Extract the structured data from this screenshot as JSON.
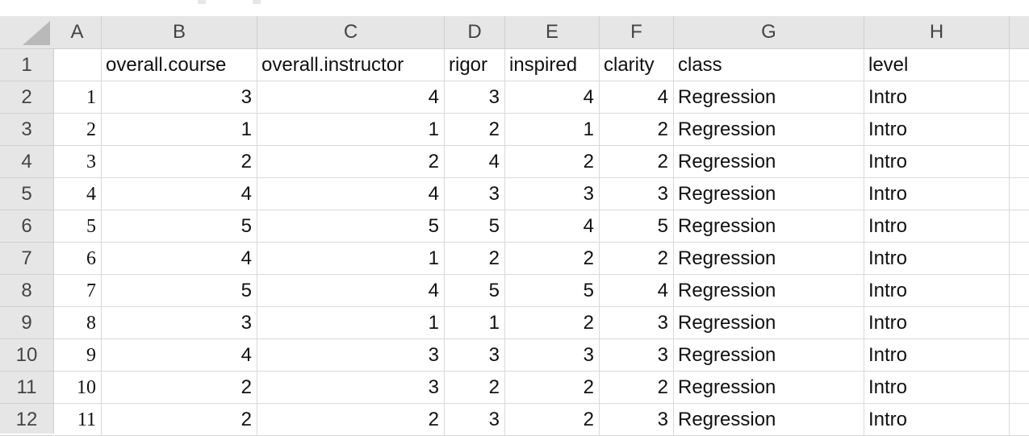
{
  "sheet": {
    "column_letters": [
      "A",
      "B",
      "C",
      "D",
      "E",
      "F",
      "G",
      "H"
    ],
    "row_numbers": [
      "1",
      "2",
      "3",
      "4",
      "5",
      "6",
      "7",
      "8",
      "9",
      "10",
      "11",
      "12"
    ],
    "headers": [
      "",
      "overall.course",
      "overall.instructor",
      "rigor",
      "inspired",
      "clarity",
      "class",
      "level"
    ],
    "rows": [
      [
        "1",
        "3",
        "4",
        "3",
        "4",
        "4",
        "Regression",
        "Intro"
      ],
      [
        "2",
        "1",
        "1",
        "2",
        "1",
        "2",
        "Regression",
        "Intro"
      ],
      [
        "3",
        "2",
        "2",
        "4",
        "2",
        "2",
        "Regression",
        "Intro"
      ],
      [
        "4",
        "4",
        "4",
        "3",
        "3",
        "3",
        "Regression",
        "Intro"
      ],
      [
        "5",
        "5",
        "5",
        "5",
        "4",
        "5",
        "Regression",
        "Intro"
      ],
      [
        "6",
        "4",
        "1",
        "2",
        "2",
        "2",
        "Regression",
        "Intro"
      ],
      [
        "7",
        "5",
        "4",
        "5",
        "5",
        "4",
        "Regression",
        "Intro"
      ],
      [
        "8",
        "3",
        "1",
        "1",
        "2",
        "3",
        "Regression",
        "Intro"
      ],
      [
        "9",
        "4",
        "3",
        "3",
        "3",
        "3",
        "Regression",
        "Intro"
      ],
      [
        "10",
        "2",
        "3",
        "2",
        "2",
        "2",
        "Regression",
        "Intro"
      ],
      [
        "11",
        "2",
        "2",
        "3",
        "2",
        "3",
        "Regression",
        "Intro"
      ]
    ]
  },
  "colors": {
    "header_bg": "#e6e6e6",
    "gridline": "#d9d9d9",
    "header_text": "#444444"
  }
}
